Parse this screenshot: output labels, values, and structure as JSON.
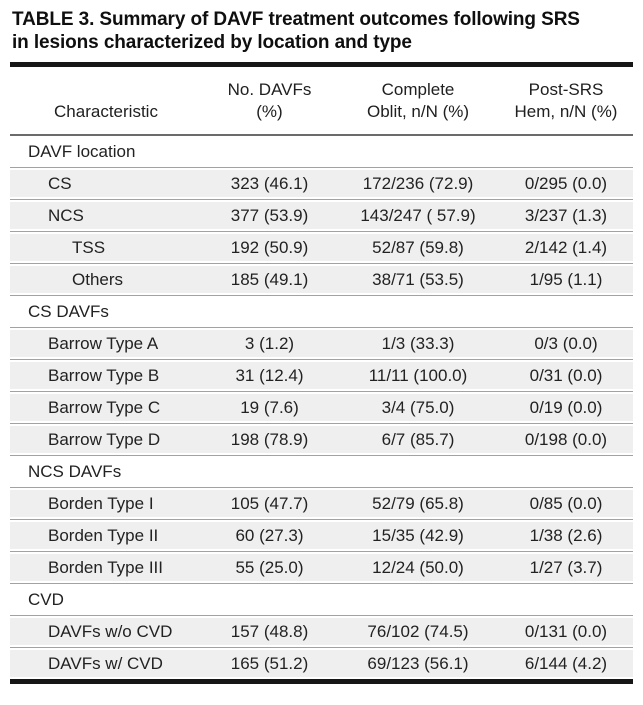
{
  "page": {
    "title_line1": "TABLE 3. Summary of DAVF treatment outcomes following SRS",
    "title_line2": "in lesions characterized by location and type"
  },
  "table": {
    "headers": [
      {
        "line1": "",
        "line2": "Characteristic"
      },
      {
        "line1": "No. DAVFs",
        "line2": "(%)"
      },
      {
        "line1": "Complete",
        "line2": "Oblit, n/N (%)"
      },
      {
        "line1": "Post-SRS",
        "line2": "Hem, n/N (%)"
      }
    ],
    "rows": [
      {
        "type": "section",
        "label": "DAVF location"
      },
      {
        "type": "data",
        "indent": 1,
        "label": "CS",
        "no_davfs": "323 (46.1)",
        "oblit": "172/236 (72.9)",
        "hem": "0/295 (0.0)"
      },
      {
        "type": "data",
        "indent": 1,
        "label": "NCS",
        "no_davfs": "377 (53.9)",
        "oblit": "143/247 ( 57.9)",
        "hem": "3/237 (1.3)"
      },
      {
        "type": "data",
        "indent": 2,
        "label": "TSS",
        "no_davfs": "192 (50.9)",
        "oblit": "52/87 (59.8)",
        "hem": "2/142 (1.4)"
      },
      {
        "type": "data",
        "indent": 2,
        "label": "Others",
        "no_davfs": "185 (49.1)",
        "oblit": "38/71 (53.5)",
        "hem": "1/95 (1.1)"
      },
      {
        "type": "section",
        "label": "CS DAVFs"
      },
      {
        "type": "data",
        "indent": 1,
        "label": "Barrow Type A",
        "no_davfs": "3 (1.2)",
        "oblit": "1/3 (33.3)",
        "hem": "0/3 (0.0)"
      },
      {
        "type": "data",
        "indent": 1,
        "label": "Barrow Type B",
        "no_davfs": "31 (12.4)",
        "oblit": "11/11 (100.0)",
        "hem": "0/31 (0.0)"
      },
      {
        "type": "data",
        "indent": 1,
        "label": "Barrow Type C",
        "no_davfs": "19 (7.6)",
        "oblit": "3/4 (75.0)",
        "hem": "0/19 (0.0)"
      },
      {
        "type": "data",
        "indent": 1,
        "label": "Barrow Type D",
        "no_davfs": "198 (78.9)",
        "oblit": "6/7 (85.7)",
        "hem": "0/198 (0.0)"
      },
      {
        "type": "section",
        "label": "NCS DAVFs"
      },
      {
        "type": "data",
        "indent": 1,
        "label": "Borden Type I",
        "no_davfs": "105 (47.7)",
        "oblit": "52/79 (65.8)",
        "hem": "0/85 (0.0)"
      },
      {
        "type": "data",
        "indent": 1,
        "label": "Borden Type II",
        "no_davfs": "60 (27.3)",
        "oblit": "15/35 (42.9)",
        "hem": "1/38 (2.6)"
      },
      {
        "type": "data",
        "indent": 1,
        "label": "Borden Type III",
        "no_davfs": "55 (25.0)",
        "oblit": "12/24 (50.0)",
        "hem": "1/27 (3.7)"
      },
      {
        "type": "section",
        "label": "CVD"
      },
      {
        "type": "data",
        "indent": 1,
        "label": "DAVFs w/o CVD",
        "no_davfs": "157 (48.8)",
        "oblit": "76/102 (74.5)",
        "hem": "0/131 (0.0)"
      },
      {
        "type": "data",
        "indent": 1,
        "label": "DAVFs w/ CVD",
        "no_davfs": "165 (51.2)",
        "oblit": "69/123 (56.1)",
        "hem": "6/144 (4.2)"
      }
    ],
    "colors": {
      "row_shade": "#efefef",
      "separator": "#a2a2a2",
      "header_rule": "#6b6b6b",
      "frame_rule": "#161616",
      "text": "#222222"
    }
  }
}
